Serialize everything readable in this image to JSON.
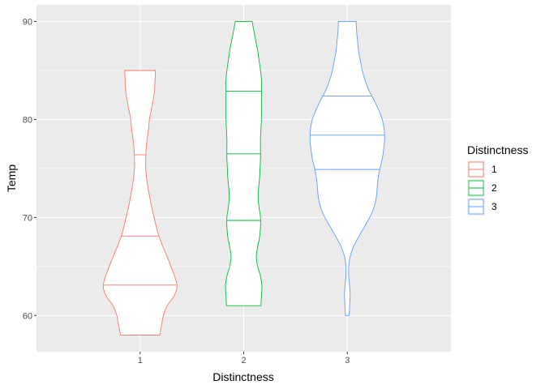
{
  "chart_data": {
    "type": "violin",
    "xlabel": "Distinctness",
    "ylabel": "Temp",
    "categories": [
      "1",
      "2",
      "3"
    ],
    "ylim": [
      56.3,
      91.7
    ],
    "yticks": [
      60,
      70,
      80,
      90
    ],
    "grid": true,
    "legend": {
      "title": "Distinctness",
      "position": "right",
      "entries": [
        "1",
        "2",
        "3"
      ]
    },
    "series": [
      {
        "category": "1",
        "color": "#F8766D",
        "quantiles": [
          63.1,
          68.1,
          76.4
        ],
        "profile": [
          [
            58.0,
            0.42
          ],
          [
            59.0,
            0.46
          ],
          [
            60.0,
            0.5
          ],
          [
            61.0,
            0.58
          ],
          [
            62.0,
            0.73
          ],
          [
            63.0,
            0.79
          ],
          [
            64.0,
            0.74
          ],
          [
            65.0,
            0.66
          ],
          [
            66.0,
            0.58
          ],
          [
            67.0,
            0.49
          ],
          [
            68.0,
            0.41
          ],
          [
            69.0,
            0.35
          ],
          [
            70.0,
            0.3
          ],
          [
            71.0,
            0.25
          ],
          [
            72.0,
            0.21
          ],
          [
            73.0,
            0.17
          ],
          [
            74.0,
            0.14
          ],
          [
            75.0,
            0.12
          ],
          [
            76.0,
            0.12
          ],
          [
            77.0,
            0.13
          ],
          [
            78.0,
            0.15
          ],
          [
            79.0,
            0.18
          ],
          [
            80.0,
            0.2
          ],
          [
            81.0,
            0.24
          ],
          [
            82.0,
            0.28
          ],
          [
            83.0,
            0.31
          ],
          [
            84.0,
            0.32
          ],
          [
            85.0,
            0.33
          ]
        ]
      },
      {
        "category": "2",
        "color": "#00BA38",
        "quantiles": [
          69.7,
          76.5,
          82.9
        ],
        "profile": [
          [
            61.0,
            0.37
          ],
          [
            62.0,
            0.38
          ],
          [
            63.0,
            0.39
          ],
          [
            64.0,
            0.36
          ],
          [
            65.0,
            0.3
          ],
          [
            66.0,
            0.27
          ],
          [
            67.0,
            0.3
          ],
          [
            68.0,
            0.34
          ],
          [
            69.0,
            0.36
          ],
          [
            70.0,
            0.36
          ],
          [
            71.0,
            0.33
          ],
          [
            72.0,
            0.31
          ],
          [
            73.0,
            0.32
          ],
          [
            74.0,
            0.34
          ],
          [
            75.0,
            0.35
          ],
          [
            76.0,
            0.36
          ],
          [
            77.0,
            0.36
          ],
          [
            78.0,
            0.36
          ],
          [
            79.0,
            0.37
          ],
          [
            80.0,
            0.38
          ],
          [
            81.0,
            0.38
          ],
          [
            82.0,
            0.38
          ],
          [
            83.0,
            0.38
          ],
          [
            84.0,
            0.38
          ],
          [
            85.0,
            0.36
          ],
          [
            86.0,
            0.33
          ],
          [
            87.0,
            0.3
          ],
          [
            88.0,
            0.26
          ],
          [
            89.0,
            0.22
          ],
          [
            90.0,
            0.18
          ]
        ]
      },
      {
        "category": "3",
        "color": "#619CFF",
        "quantiles": [
          74.9,
          78.4,
          82.4
        ],
        "profile": [
          [
            60.0,
            0.04
          ],
          [
            61.0,
            0.05
          ],
          [
            62.0,
            0.06
          ],
          [
            63.0,
            0.05
          ],
          [
            64.0,
            0.03
          ],
          [
            65.0,
            0.03
          ],
          [
            66.0,
            0.06
          ],
          [
            67.0,
            0.13
          ],
          [
            68.0,
            0.24
          ],
          [
            69.0,
            0.36
          ],
          [
            70.0,
            0.48
          ],
          [
            71.0,
            0.57
          ],
          [
            72.0,
            0.62
          ],
          [
            73.0,
            0.64
          ],
          [
            74.0,
            0.66
          ],
          [
            75.0,
            0.7
          ],
          [
            76.0,
            0.75
          ],
          [
            77.0,
            0.78
          ],
          [
            78.0,
            0.8
          ],
          [
            79.0,
            0.79
          ],
          [
            80.0,
            0.75
          ],
          [
            81.0,
            0.67
          ],
          [
            82.0,
            0.57
          ],
          [
            83.0,
            0.46
          ],
          [
            84.0,
            0.38
          ],
          [
            85.0,
            0.32
          ],
          [
            86.0,
            0.28
          ],
          [
            87.0,
            0.24
          ],
          [
            88.0,
            0.22
          ],
          [
            89.0,
            0.2
          ],
          [
            90.0,
            0.19
          ]
        ]
      }
    ]
  }
}
